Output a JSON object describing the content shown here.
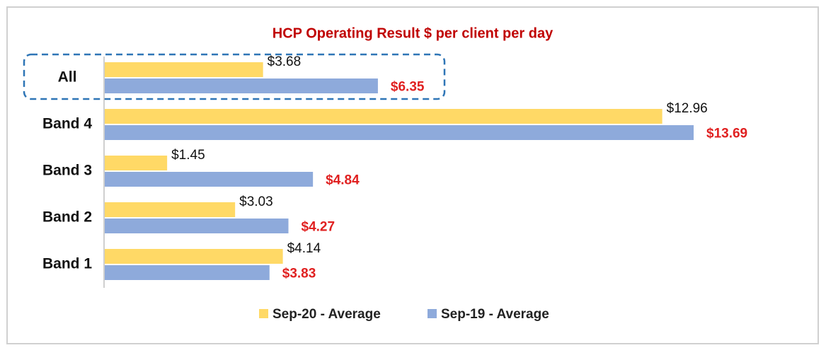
{
  "chart_data": {
    "type": "bar",
    "orientation": "horizontal",
    "title": "HCP Operating Result $ per client per day",
    "categories": [
      "All",
      "Band 4",
      "Band 3",
      "Band 2",
      "Band 1"
    ],
    "series": [
      {
        "name": "Sep-20 - Average",
        "color": "#ffd966",
        "label_color": "#111111",
        "values": [
          3.68,
          12.96,
          1.45,
          3.03,
          4.14
        ],
        "value_labels": [
          "$3.68",
          "$12.96",
          "$1.45",
          "$3.03",
          "$4.14"
        ]
      },
      {
        "name": "Sep-19 - Average",
        "color": "#8eaadb",
        "label_color": "#e02020",
        "values": [
          6.35,
          13.69,
          4.84,
          4.27,
          3.83
        ],
        "value_labels": [
          "$6.35",
          "$13.69",
          "$4.84",
          "$4.27",
          "$3.83"
        ]
      }
    ]
  }
}
